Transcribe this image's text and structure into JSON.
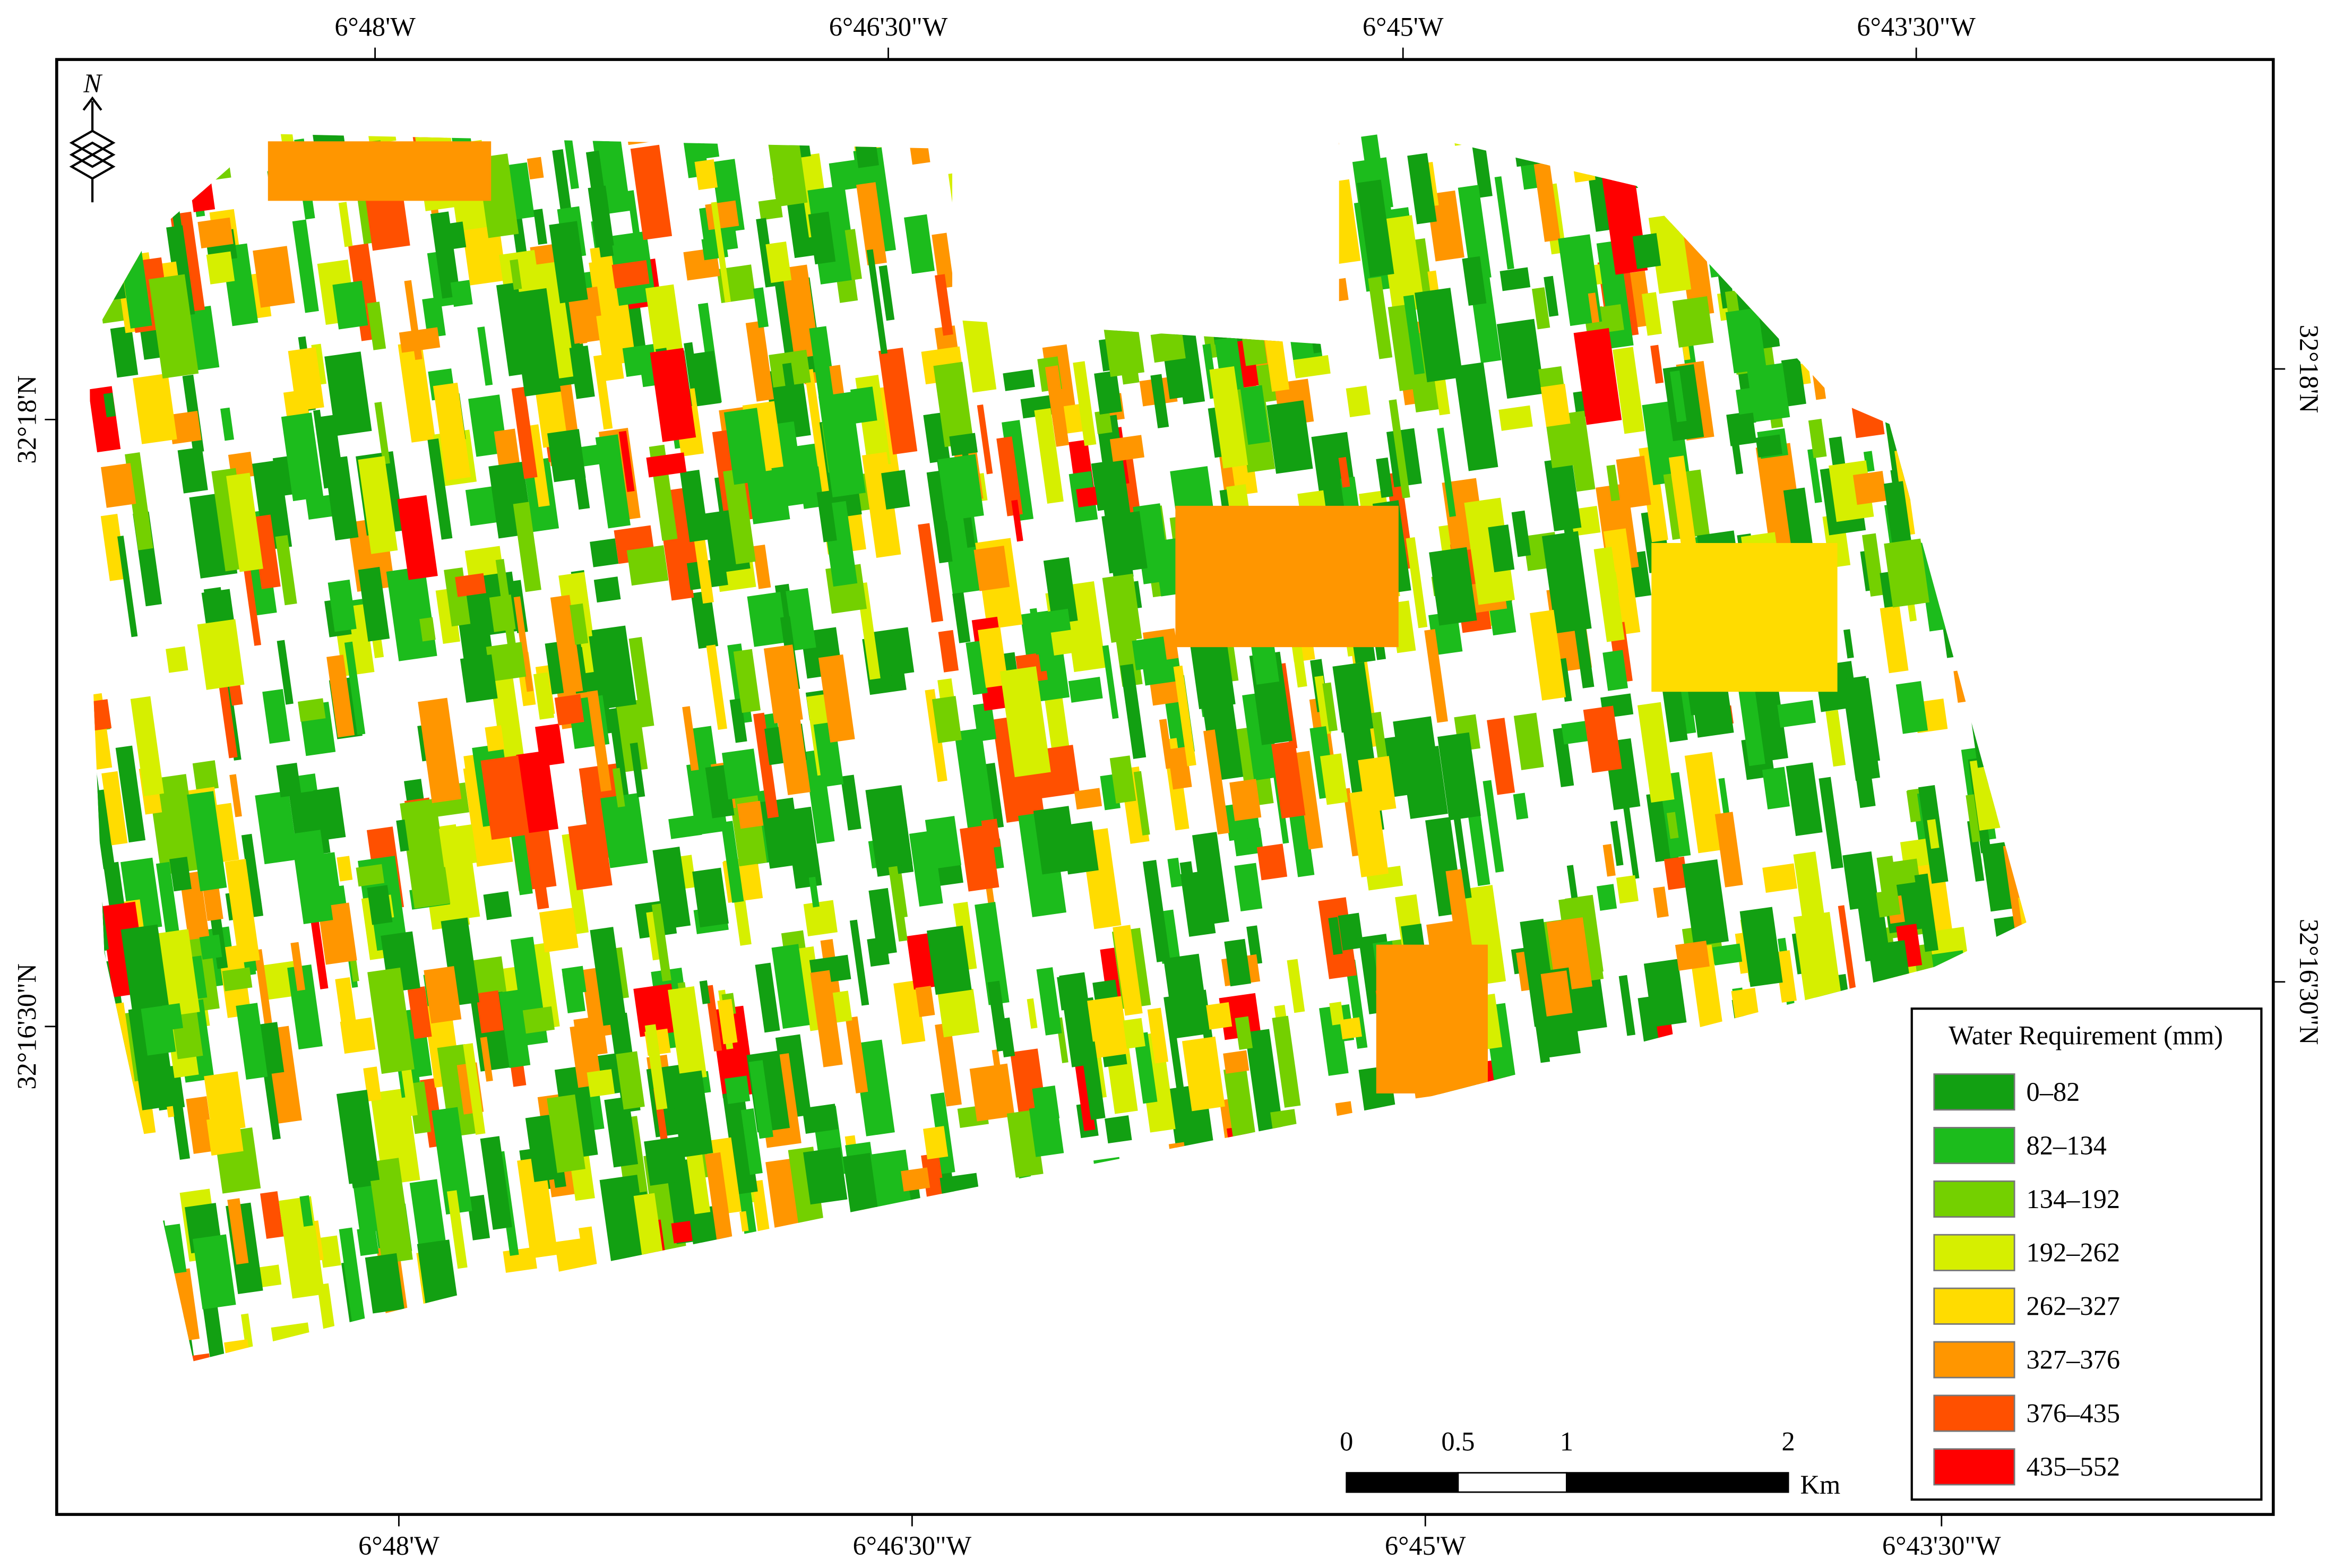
{
  "map": {
    "top_labels": [
      "6°48'W",
      "6°46'30\"W",
      "6°45'W",
      "6°43'30\"W"
    ],
    "bottom_labels": [
      "6°48'W",
      "6°46'30\"W",
      "6°45'W",
      "6°43'30\"W"
    ],
    "left_labels": [
      "32°18'N",
      "32°16'30\"N"
    ],
    "right_labels": [
      "32°18'N",
      "32°16'30\"N"
    ],
    "north": "N",
    "legend": {
      "title": "Water Requirement (mm)",
      "items": [
        {
          "label": "0–82",
          "color": "#12a012"
        },
        {
          "label": "82–134",
          "color": "#1cbc1c"
        },
        {
          "label": "134–192",
          "color": "#74d000"
        },
        {
          "label": "192–262",
          "color": "#d6ef00"
        },
        {
          "label": "262–327",
          "color": "#ffdc00"
        },
        {
          "label": "327–376",
          "color": "#ff9600"
        },
        {
          "label": "376–435",
          "color": "#ff5000"
        },
        {
          "label": "435–552",
          "color": "#ff0000"
        }
      ]
    },
    "scale": {
      "labels": [
        "0",
        "0.5",
        "1",
        "2"
      ],
      "unit": "Km"
    }
  }
}
